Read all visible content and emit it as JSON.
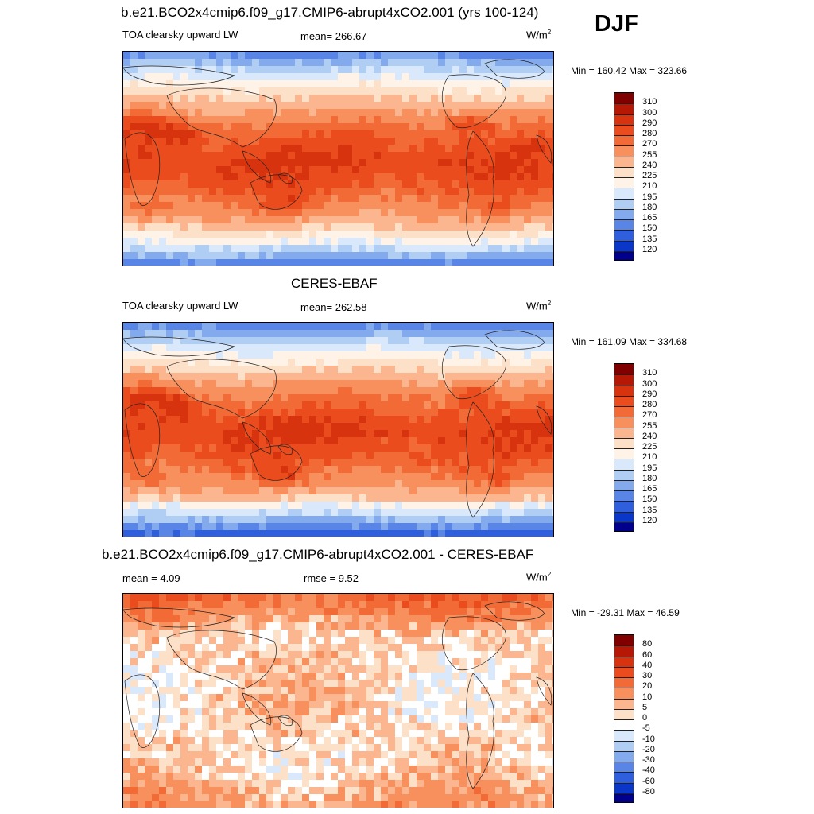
{
  "season": "DJF",
  "units_base": "W/m",
  "units_sup": "2",
  "panels": [
    {
      "title": "b.e21.BCO2x4cmip6.f09_g17.CMIP6-abrupt4xCO2.001 (yrs 100-124)",
      "left": "TOA clearsky upward LW",
      "center": "mean= 266.67",
      "minmax": "Min = 160.42 Max = 323.66"
    },
    {
      "title": "CERES-EBAF",
      "left": "TOA clearsky upward LW",
      "center": "mean= 262.58",
      "minmax": "Min = 161.09 Max = 334.68"
    },
    {
      "title": "b.e21.BCO2x4cmip6.f09_g17.CMIP6-abrupt4xCO2.001 - CERES-EBAF",
      "left": "mean =   4.09",
      "center": "rmse =   9.52",
      "minmax": "Min = -29.31 Max =  46.59"
    }
  ],
  "chart_data": [
    {
      "type": "heatmap",
      "title": "b.e21.BCO2x4cmip6.f09_g17.CMIP6-abrupt4xCO2.001 (yrs 100-124)",
      "variable": "TOA clearsky upward LW",
      "mean": 266.67,
      "min": 160.42,
      "max": 323.66,
      "levels": [
        120,
        135,
        150,
        165,
        180,
        195,
        210,
        225,
        240,
        255,
        270,
        280,
        290,
        300,
        310
      ],
      "colors": [
        "#800000",
        "#b51805",
        "#d8330f",
        "#ea4c1d",
        "#f26b36",
        "#f8905e",
        "#fbb690",
        "#fde0c8",
        "#fff3e8",
        "#d9e8fa",
        "#b0cdf4",
        "#84aaee",
        "#5985e6",
        "#2f5fdc",
        "#0a37c8",
        "#00008c"
      ]
    },
    {
      "type": "heatmap",
      "title": "CERES-EBAF",
      "variable": "TOA clearsky upward LW",
      "mean": 262.58,
      "min": 161.09,
      "max": 334.68,
      "levels": [
        120,
        135,
        150,
        165,
        180,
        195,
        210,
        225,
        240,
        255,
        270,
        280,
        290,
        300,
        310
      ],
      "colors": [
        "#800000",
        "#b51805",
        "#d8330f",
        "#ea4c1d",
        "#f26b36",
        "#f8905e",
        "#fbb690",
        "#fde0c8",
        "#fff3e8",
        "#d9e8fa",
        "#b0cdf4",
        "#84aaee",
        "#5985e6",
        "#2f5fdc",
        "#0a37c8",
        "#00008c"
      ]
    },
    {
      "type": "heatmap",
      "title": "b.e21.BCO2x4cmip6.f09_g17.CMIP6-abrupt4xCO2.001 - CERES-EBAF",
      "mean": 4.09,
      "rmse": 9.52,
      "min": -29.31,
      "max": 46.59,
      "levels": [
        -80,
        -60,
        -40,
        -30,
        -20,
        -10,
        -5,
        0,
        5,
        10,
        20,
        30,
        40,
        60,
        80
      ],
      "colors": [
        "#800000",
        "#b51805",
        "#d8330f",
        "#ea4c1d",
        "#f26b36",
        "#f8905e",
        "#fbb690",
        "#fde0c8",
        "#ffffff",
        "#d9e8fa",
        "#b0cdf4",
        "#84aaee",
        "#5985e6",
        "#2f5fdc",
        "#0a37c8",
        "#00008c"
      ]
    }
  ]
}
